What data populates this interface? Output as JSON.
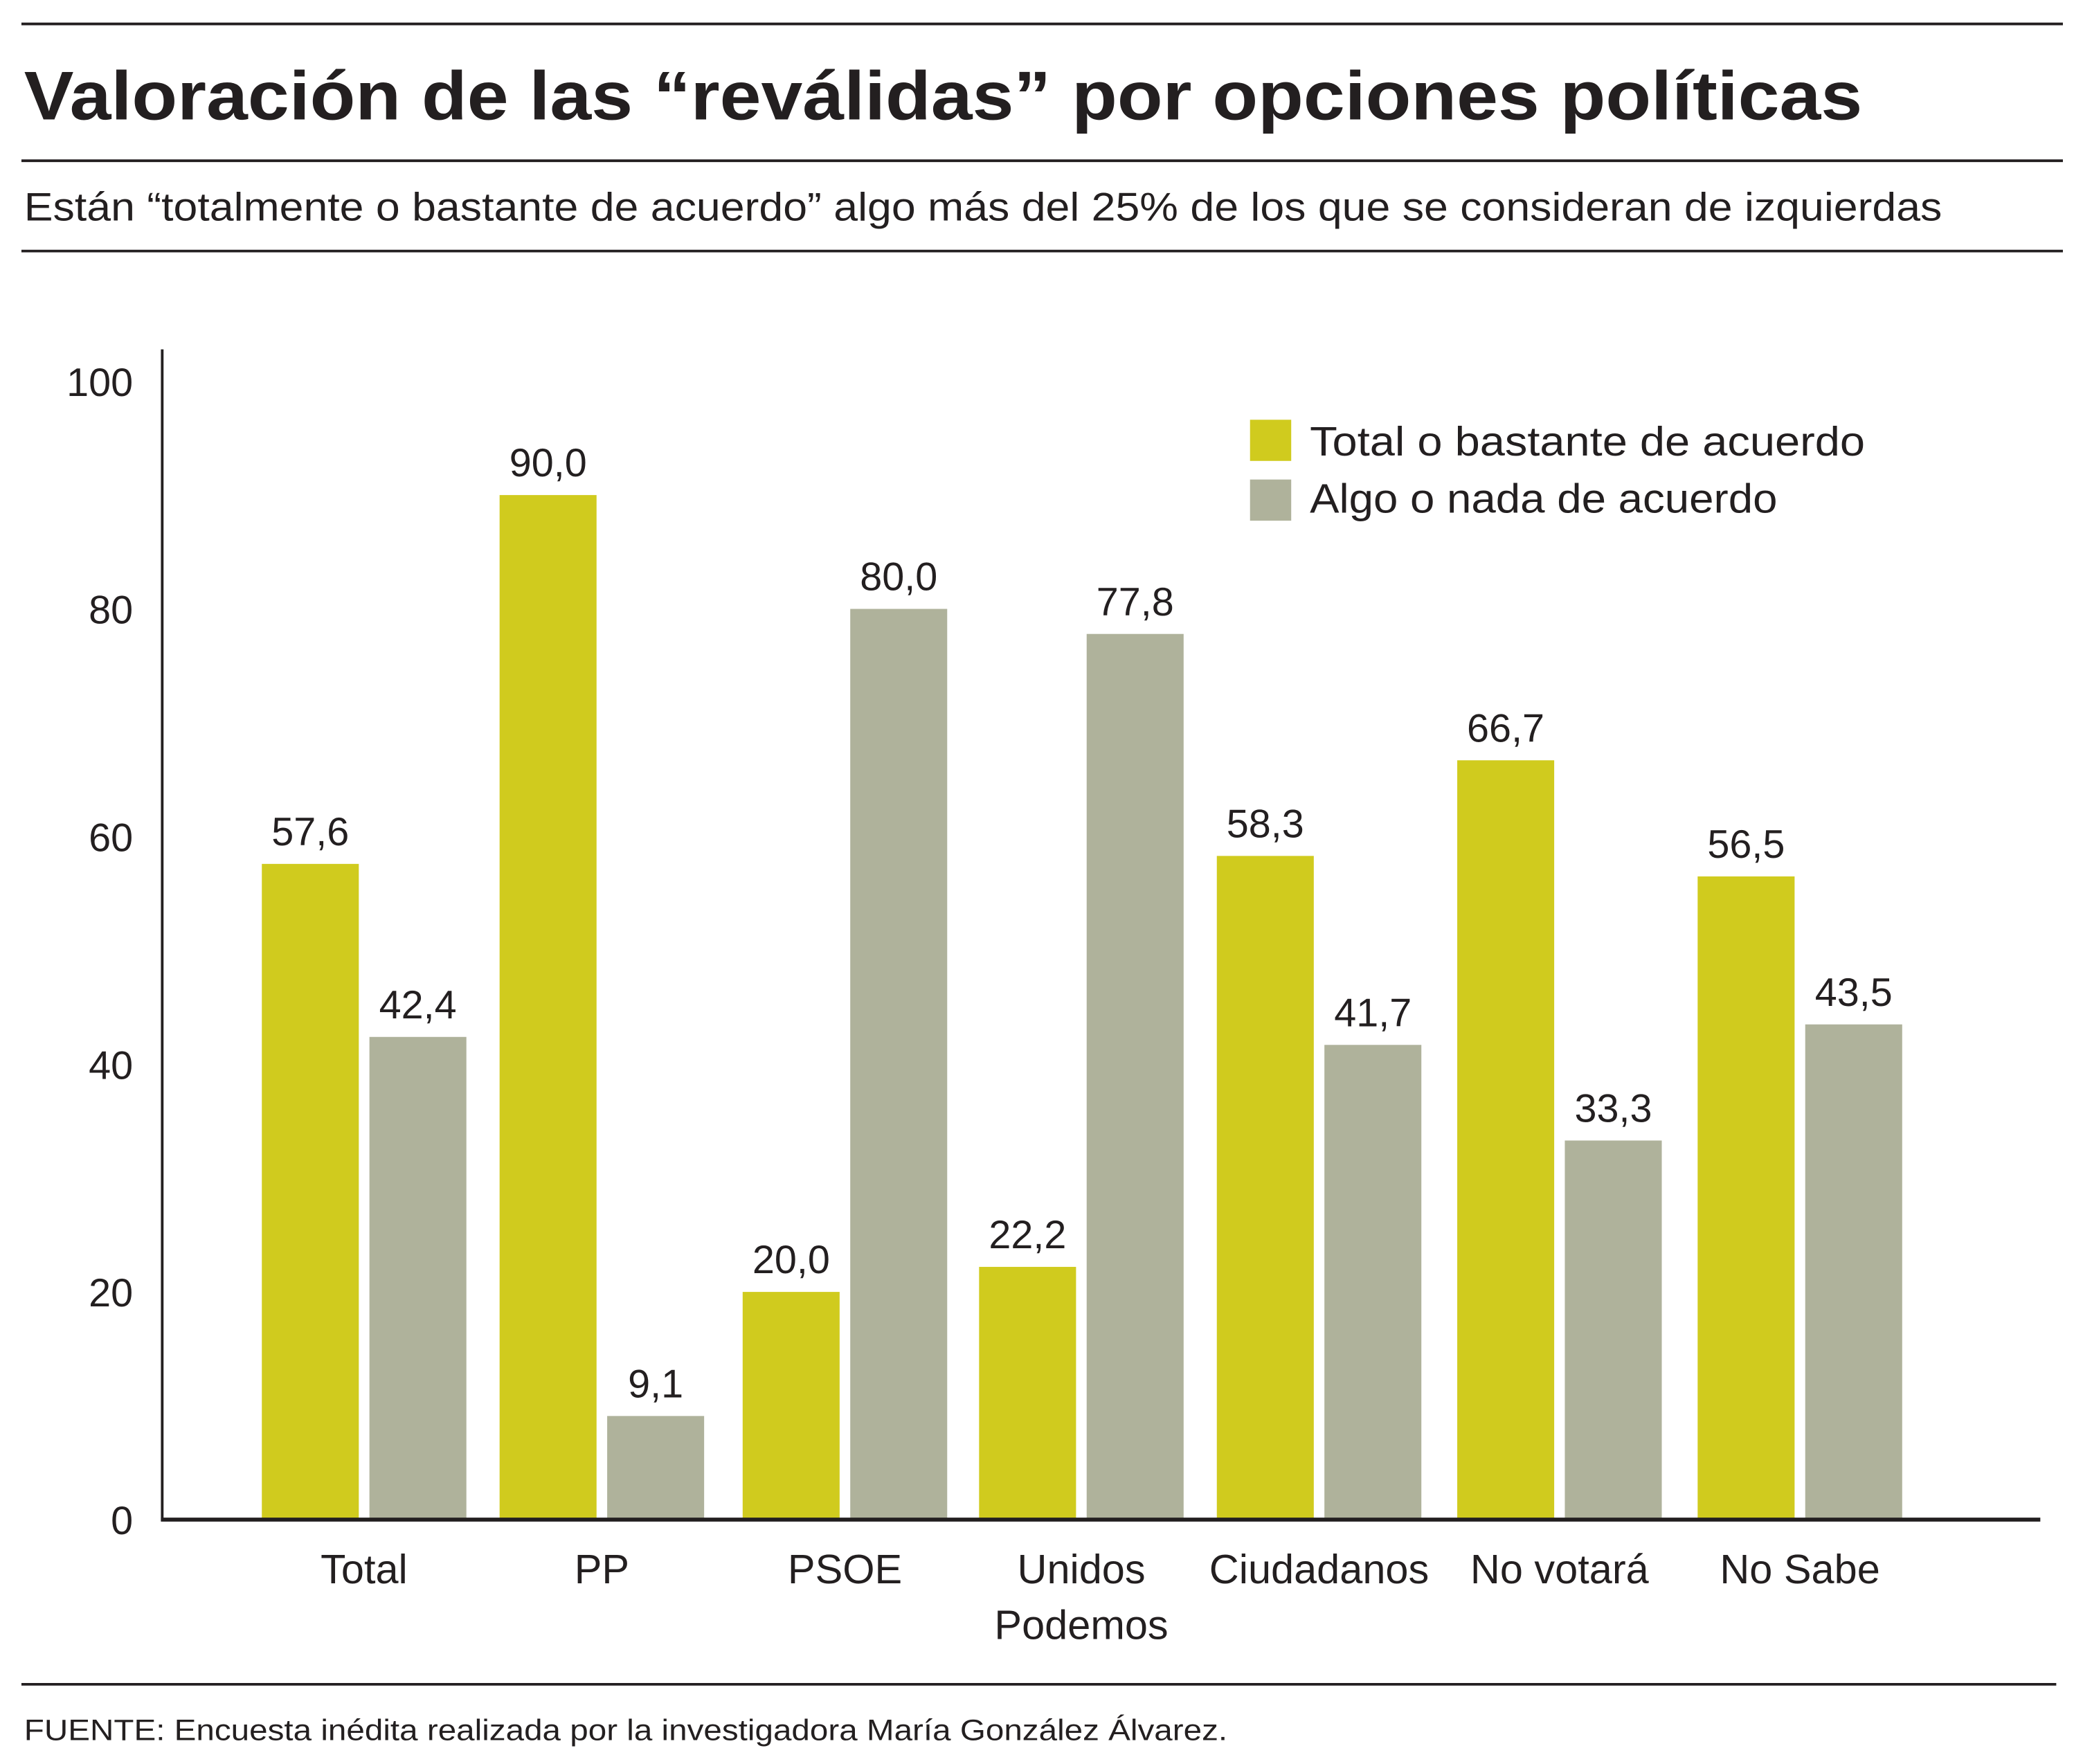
{
  "title": "Valoración de las “reválidas” por opciones políticas",
  "subtitle": "Están “totalmente o bastante de acuerdo” algo más del 25% de los que se consideran de izquierdas",
  "source": "FUENTE: Encuesta inédita realizada por la investigadora María González Álvarez.",
  "chart_data": {
    "type": "bar",
    "categories": [
      [
        "Total"
      ],
      [
        "PP"
      ],
      [
        "PSOE"
      ],
      [
        "Unidos",
        "Podemos"
      ],
      [
        "Ciudadanos"
      ],
      [
        "No votará"
      ],
      [
        "No Sabe"
      ]
    ],
    "series": [
      {
        "name": "Total o bastante de acuerdo",
        "color": "#D0CB1E",
        "values": [
          57.6,
          90.0,
          20.0,
          22.2,
          58.3,
          66.7,
          56.5
        ],
        "labels": [
          "57,6",
          "90,0",
          "20,0",
          "22,2",
          "58,3",
          "66,7",
          "56,5"
        ]
      },
      {
        "name": "Algo o nada de acuerdo",
        "color": "#AFB29B",
        "values": [
          42.4,
          9.1,
          80.0,
          77.8,
          41.7,
          33.3,
          43.5
        ],
        "labels": [
          "42,4",
          "9,1",
          "80,0",
          "77,8",
          "41,7",
          "33,3",
          "43,5"
        ]
      }
    ],
    "yticks": [
      "0",
      "20",
      "40",
      "60",
      "80",
      "100"
    ],
    "ylim": [
      0,
      100
    ],
    "grid": false,
    "legend": "top-right"
  }
}
